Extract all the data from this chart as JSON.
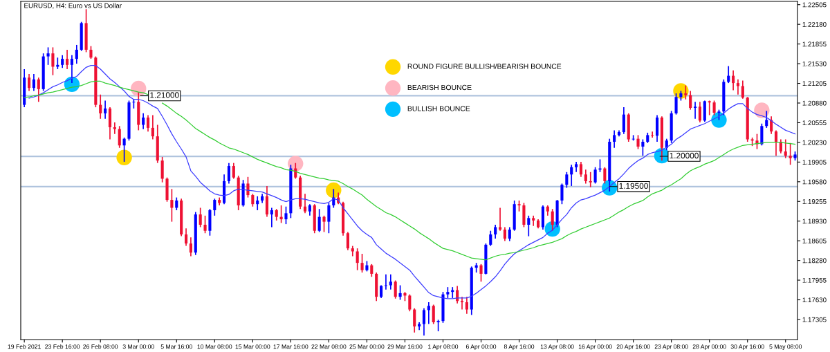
{
  "chart_data": {
    "type": "candlestick",
    "title": "EURUSD, H4: Euro vs US Dollar",
    "categories": [
      "19 Feb 2021",
      null,
      null,
      null,
      null,
      null,
      null,
      null,
      "23 Feb 16:00",
      null,
      null,
      null,
      null,
      null,
      null,
      null,
      "26 Feb 08:00",
      null,
      null,
      null,
      null,
      null,
      null,
      null,
      "3 Mar 00:00",
      null,
      null,
      null,
      null,
      null,
      null,
      null,
      "5 Mar 16:00",
      null,
      null,
      null,
      null,
      null,
      null,
      null,
      "10 Mar 08:00",
      null,
      null,
      null,
      null,
      null,
      null,
      null,
      "15 Mar 00:00",
      null,
      null,
      null,
      null,
      null,
      null,
      null,
      "17 Mar 16:00",
      null,
      null,
      null,
      null,
      null,
      null,
      null,
      "22 Mar 08:00",
      null,
      null,
      null,
      null,
      null,
      null,
      null,
      "25 Mar 00:00",
      null,
      null,
      null,
      null,
      null,
      null,
      null,
      "29 Mar 16:00",
      null,
      null,
      null,
      null,
      null,
      null,
      null,
      "1 Apr 08:00",
      null,
      null,
      null,
      null,
      null,
      null,
      null,
      "6 Apr 00:00",
      null,
      null,
      null,
      null,
      null,
      null,
      null,
      "8 Apr 16:00",
      null,
      null,
      null,
      null,
      null,
      null,
      null,
      "13 Apr 08:00",
      null,
      null,
      null,
      null,
      null,
      null,
      null,
      "16 Apr 00:00",
      null,
      null,
      null,
      null,
      null,
      null,
      null,
      "20 Apr 16:00",
      null,
      null,
      null,
      null,
      null,
      null,
      null,
      "23 Apr 08:00",
      null,
      null,
      null,
      null,
      null,
      null,
      null,
      "28 Apr 00:00",
      null,
      null,
      null,
      null,
      null,
      null,
      null,
      "30 Apr 16:00",
      null,
      null,
      null,
      null,
      null,
      null,
      null,
      "5 May 08:00",
      null,
      null
    ],
    "ylim": [
      1.16974,
      1.22559
    ],
    "yticks": [
      1.22505,
      {
        "value": 1.2218,
        "label": "1.22180"
      },
      1.21855,
      {
        "value": 1.2153,
        "label": "1.21530"
      },
      1.21205,
      {
        "value": 1.2088,
        "label": "1.20880"
      },
      1.20555,
      {
        "value": 1.2023,
        "label": "1.20230"
      },
      1.19905,
      {
        "value": 1.1958,
        "label": "1.19580"
      },
      1.19255,
      {
        "value": 1.1893,
        "label": "1.18930"
      },
      1.18605,
      {
        "value": 1.1828,
        "label": "1.18280"
      },
      1.17955,
      {
        "value": 1.1763,
        "label": "1.17630"
      },
      1.17305
    ],
    "ref_lines": [
      {
        "axis": "y",
        "value": 1.21,
        "label": "1.21000",
        "color": "#b0c4de"
      },
      {
        "axis": "y",
        "value": 1.2,
        "label": "1.20000",
        "color": "#b0c4de"
      },
      {
        "axis": "y",
        "value": 1.195,
        "label": "1.19500",
        "color": "#b0c4de"
      }
    ],
    "legend": "top",
    "series": [
      {
        "ohlc": [
          [
            1.2085,
            1.2144,
            1.2081,
            1.213
          ],
          [
            1.213,
            1.2136,
            1.2108,
            1.2113
          ],
          [
            1.2113,
            1.2136,
            1.2108,
            1.2127
          ],
          [
            1.2127,
            1.213,
            1.209,
            1.2111
          ],
          [
            1.2111,
            1.217,
            1.2108,
            1.2165
          ],
          [
            1.2165,
            1.218,
            1.2151,
            1.217
          ],
          [
            1.217,
            1.218,
            1.2134,
            1.2148
          ],
          [
            1.2148,
            1.2163,
            1.2144,
            1.2151
          ],
          [
            1.2151,
            1.2167,
            1.2146,
            1.2161
          ],
          [
            1.2161,
            1.2176,
            1.2144,
            1.2151
          ],
          [
            1.2151,
            1.2167,
            1.2121,
            1.2161
          ],
          [
            1.2161,
            1.2184,
            1.2153,
            1.2176
          ],
          [
            1.2176,
            1.2222,
            1.2174,
            1.222
          ],
          [
            1.222,
            1.2243,
            1.2172,
            1.2176
          ],
          [
            1.2176,
            1.2182,
            1.2161,
            1.2163
          ],
          [
            1.2163,
            1.2165,
            1.2081,
            1.2085
          ],
          [
            1.2085,
            1.2102,
            1.2062,
            1.2071
          ],
          [
            1.2071,
            1.2092,
            1.2062,
            1.2079
          ],
          [
            1.2079,
            1.2081,
            1.2028,
            1.2048
          ],
          [
            1.2048,
            1.2056,
            1.2037,
            1.2045
          ],
          [
            1.2045,
            1.205,
            1.2014,
            1.2018
          ],
          [
            1.2018,
            1.2031,
            1.1991,
            1.2029
          ],
          [
            1.2029,
            1.2092,
            1.2026,
            1.2089
          ],
          [
            1.2089,
            1.2094,
            1.2079,
            1.209
          ],
          [
            1.209,
            1.2106,
            1.2043,
            1.2052
          ],
          [
            1.2052,
            1.2071,
            1.2045,
            1.2064
          ],
          [
            1.2064,
            1.2068,
            1.2041,
            1.2047
          ],
          [
            1.2047,
            1.2068,
            1.2028,
            1.2033
          ],
          [
            1.2033,
            1.2052,
            1.1989,
            1.1993
          ],
          [
            1.1993,
            1.1999,
            1.1957,
            1.1963
          ],
          [
            1.1963,
            1.1965,
            1.1925,
            1.1928
          ],
          [
            1.1928,
            1.1946,
            1.1892,
            1.1915
          ],
          [
            1.1915,
            1.1932,
            1.1911,
            1.1927
          ],
          [
            1.1927,
            1.193,
            1.1868,
            1.1871
          ],
          [
            1.1871,
            1.1881,
            1.1852,
            1.1856
          ],
          [
            1.1856,
            1.1866,
            1.1835,
            1.1841
          ],
          [
            1.1841,
            1.1908,
            1.1837,
            1.1904
          ],
          [
            1.1904,
            1.1915,
            1.1883,
            1.1887
          ],
          [
            1.1887,
            1.1902,
            1.1873,
            1.1877
          ],
          [
            1.1877,
            1.1913,
            1.1869,
            1.1911
          ],
          [
            1.1911,
            1.193,
            1.1902,
            1.1928
          ],
          [
            1.1928,
            1.1932,
            1.1919,
            1.1923
          ],
          [
            1.1923,
            1.197,
            1.1921,
            1.1959
          ],
          [
            1.1959,
            1.1989,
            1.1955,
            1.1984
          ],
          [
            1.1984,
            1.1989,
            1.1963,
            1.1965
          ],
          [
            1.1965,
            1.1968,
            1.1911,
            1.1919
          ],
          [
            1.1919,
            1.1961,
            1.1917,
            1.1955
          ],
          [
            1.1955,
            1.1966,
            1.1932,
            1.1936
          ],
          [
            1.1936,
            1.1938,
            1.1917,
            1.1921
          ],
          [
            1.1921,
            1.1934,
            1.1911,
            1.1927
          ],
          [
            1.1927,
            1.1938,
            1.1923,
            1.1934
          ],
          [
            1.1934,
            1.1951,
            1.19,
            1.1904
          ],
          [
            1.1904,
            1.1915,
            1.1883,
            1.1911
          ],
          [
            1.1911,
            1.1913,
            1.1894,
            1.19
          ],
          [
            1.19,
            1.1919,
            1.189,
            1.1896
          ],
          [
            1.1896,
            1.1917,
            1.1888,
            1.1906
          ],
          [
            1.1906,
            1.1986,
            1.1898,
            1.198
          ],
          [
            1.198,
            1.1989,
            1.1963,
            1.1965
          ],
          [
            1.1965,
            1.1968,
            1.1913,
            1.1917
          ],
          [
            1.1917,
            1.1938,
            1.1906,
            1.1909
          ],
          [
            1.1909,
            1.1921,
            1.1902,
            1.1919
          ],
          [
            1.1919,
            1.1921,
            1.1873,
            1.1877
          ],
          [
            1.1877,
            1.1913,
            1.1875,
            1.19
          ],
          [
            1.19,
            1.1902,
            1.1875,
            1.1892
          ],
          [
            1.1892,
            1.1923,
            1.1873,
            1.1919
          ],
          [
            1.1919,
            1.1946,
            1.1915,
            1.1932
          ],
          [
            1.1932,
            1.194,
            1.1921,
            1.1923
          ],
          [
            1.1923,
            1.1925,
            1.1869,
            1.1873
          ],
          [
            1.1873,
            1.1875,
            1.1845,
            1.1848
          ],
          [
            1.1848,
            1.1852,
            1.1835,
            1.1843
          ],
          [
            1.1843,
            1.1848,
            1.1812,
            1.1824
          ],
          [
            1.1824,
            1.1839,
            1.1808,
            1.1812
          ],
          [
            1.1812,
            1.1827,
            1.181,
            1.182
          ],
          [
            1.182,
            1.1822,
            1.1801,
            1.1806
          ],
          [
            1.1806,
            1.1808,
            1.1761,
            1.1768
          ],
          [
            1.1768,
            1.1787,
            1.1766,
            1.1786
          ],
          [
            1.1786,
            1.1805,
            1.178,
            1.1787
          ],
          [
            1.1787,
            1.1805,
            1.178,
            1.1793
          ],
          [
            1.1793,
            1.1795,
            1.1765,
            1.1768
          ],
          [
            1.1768,
            1.1787,
            1.1763,
            1.1774
          ],
          [
            1.1774,
            1.1776,
            1.1761,
            1.177
          ],
          [
            1.177,
            1.1772,
            1.1744,
            1.1747
          ],
          [
            1.1747,
            1.1749,
            1.1709,
            1.1719
          ],
          [
            1.1719,
            1.1726,
            1.1713,
            1.1723
          ],
          [
            1.1723,
            1.1749,
            1.1704,
            1.1746
          ],
          [
            1.1746,
            1.1759,
            1.1723,
            1.1753
          ],
          [
            1.1753,
            1.1755,
            1.1723,
            1.1726
          ],
          [
            1.1726,
            1.173,
            1.1711,
            1.1728
          ],
          [
            1.1728,
            1.1776,
            1.1725,
            1.1772
          ],
          [
            1.1772,
            1.1784,
            1.1766,
            1.1776
          ],
          [
            1.1776,
            1.1784,
            1.1766,
            1.1779
          ],
          [
            1.1779,
            1.1786,
            1.1757,
            1.1761
          ],
          [
            1.1761,
            1.1768,
            1.1747,
            1.1759
          ],
          [
            1.1759,
            1.1768,
            1.174,
            1.1747
          ],
          [
            1.1747,
            1.1818,
            1.1738,
            1.1816
          ],
          [
            1.1816,
            1.1824,
            1.1808,
            1.182
          ],
          [
            1.182,
            1.1822,
            1.1793,
            1.1806
          ],
          [
            1.1806,
            1.1856,
            1.1805,
            1.1854
          ],
          [
            1.1854,
            1.1877,
            1.1852,
            1.1871
          ],
          [
            1.1871,
            1.1887,
            1.1864,
            1.1883
          ],
          [
            1.1883,
            1.1915,
            1.1877,
            1.1879
          ],
          [
            1.1879,
            1.1883,
            1.186,
            1.1864
          ],
          [
            1.1864,
            1.1883,
            1.186,
            1.1879
          ],
          [
            1.1879,
            1.1927,
            1.1877,
            1.1921
          ],
          [
            1.1921,
            1.1927,
            1.1909,
            1.1919
          ],
          [
            1.1919,
            1.1923,
            1.1883,
            1.1887
          ],
          [
            1.1887,
            1.1902,
            1.1868,
            1.1898
          ],
          [
            1.1898,
            1.1902,
            1.1885,
            1.1894
          ],
          [
            1.1894,
            1.1896,
            1.1881,
            1.1883
          ],
          [
            1.1883,
            1.1919,
            1.1879,
            1.1917
          ],
          [
            1.1917,
            1.1919,
            1.1902,
            1.1909
          ],
          [
            1.1909,
            1.1913,
            1.1877,
            1.1887
          ],
          [
            1.1887,
            1.1928,
            1.1883,
            1.1927
          ],
          [
            1.1927,
            1.1955,
            1.1921,
            1.1953
          ],
          [
            1.1953,
            1.1974,
            1.1948,
            1.197
          ],
          [
            1.197,
            1.1986,
            1.1951,
            1.1982
          ],
          [
            1.1982,
            1.1991,
            1.1974,
            1.1987
          ],
          [
            1.1987,
            1.1991,
            1.1966,
            1.197
          ],
          [
            1.197,
            1.1978,
            1.1955,
            1.1959
          ],
          [
            1.1959,
            1.1974,
            1.1949,
            1.1957
          ],
          [
            1.1957,
            1.1982,
            1.1955,
            1.1978
          ],
          [
            1.1978,
            1.1995,
            1.1974,
            1.198
          ],
          [
            1.198,
            1.1982,
            1.1955,
            1.1959
          ],
          [
            1.1959,
            1.2029,
            1.1942,
            1.2024
          ],
          [
            1.2024,
            1.2043,
            1.2014,
            1.2035
          ],
          [
            1.2035,
            1.2043,
            1.2033,
            1.204
          ],
          [
            1.204,
            1.2081,
            1.2037,
            1.2069
          ],
          [
            1.2069,
            1.2071,
            1.2024,
            1.2028
          ],
          [
            1.2028,
            1.2035,
            1.2026,
            1.2029
          ],
          [
            1.2029,
            1.2035,
            1.2012,
            1.2016
          ],
          [
            1.2016,
            1.2028,
            1.2001,
            1.2024
          ],
          [
            1.2024,
            1.2039,
            1.2022,
            1.2035
          ],
          [
            1.2035,
            1.2041,
            1.2031,
            1.2034
          ],
          [
            1.2034,
            1.2068,
            1.2024,
            1.2064
          ],
          [
            1.2064,
            1.2066,
            1.1993,
            1.2014
          ],
          [
            1.2014,
            1.2029,
            1.201,
            1.2026
          ],
          [
            1.2026,
            1.2075,
            1.2022,
            1.2071
          ],
          [
            1.2071,
            1.2104,
            1.2069,
            1.2098
          ],
          [
            1.2098,
            1.2108,
            1.2092,
            1.2104
          ],
          [
            1.2104,
            1.2117,
            1.2094,
            1.2101
          ],
          [
            1.2101,
            1.2108,
            1.2077,
            1.208
          ],
          [
            1.208,
            1.209,
            1.2062,
            1.2082
          ],
          [
            1.2082,
            1.209,
            1.2056,
            1.2059
          ],
          [
            1.2059,
            1.2092,
            1.2057,
            1.2091
          ],
          [
            1.2091,
            1.2092,
            1.2068,
            1.2089
          ],
          [
            1.2089,
            1.2092,
            1.2068,
            1.2072
          ],
          [
            1.2072,
            1.2077,
            1.206,
            1.2074
          ],
          [
            1.2074,
            1.2127,
            1.2068,
            1.2123
          ],
          [
            1.2123,
            1.2149,
            1.2121,
            1.2133
          ],
          [
            1.2133,
            1.2142,
            1.2109,
            1.2121
          ],
          [
            1.2121,
            1.2127,
            1.2102,
            1.2116
          ],
          [
            1.2116,
            1.2125,
            1.2095,
            1.2097
          ],
          [
            1.2097,
            1.2098,
            1.2024,
            1.2028
          ],
          [
            1.2028,
            1.2031,
            1.2017,
            1.2026
          ],
          [
            1.2026,
            1.2037,
            1.2012,
            1.202
          ],
          [
            1.202,
            1.2054,
            1.2018,
            1.205
          ],
          [
            1.205,
            1.2075,
            1.2047,
            1.206
          ],
          [
            1.206,
            1.2066,
            1.2037,
            1.2041
          ],
          [
            1.2041,
            1.2043,
            1.2001,
            1.2024
          ],
          [
            1.2024,
            1.2028,
            1.2005,
            1.2008
          ],
          [
            1.2008,
            1.2028,
            1.1997,
            1.2001
          ],
          [
            1.2001,
            1.2022,
            1.1986,
            1.1997
          ],
          [
            1.1997,
            1.2008,
            1.1993,
            1.2003
          ]
        ],
        "colors": [
          "#0000ff",
          "#ee1133",
          "#0000ff",
          "#ee1133",
          "#0000ff",
          "#0000ff",
          "#ee1133",
          "#0000ff",
          "#0000ff",
          "#ee1133",
          "#0000ff",
          "#0000ff",
          "#0000ff",
          "#ee1133",
          "#ee1133",
          "#ee1133",
          "#ee1133",
          "#0000ff",
          "#ee1133",
          "#ee1133",
          "#ee1133",
          "#0000ff",
          "#0000ff",
          "#0000ff",
          "#ee1133",
          "#0000ff",
          "#ee1133",
          "#ee1133",
          "#ee1133",
          "#ee1133",
          "#ee1133",
          "#ee1133",
          "#0000ff",
          "#ee1133",
          "#ee1133",
          "#ee1133",
          "#0000ff",
          "#ee1133",
          "#ee1133",
          "#0000ff",
          "#0000ff",
          "#ee1133",
          "#0000ff",
          "#0000ff",
          "#ee1133",
          "#ee1133",
          "#0000ff",
          "#ee1133",
          "#ee1133",
          "#0000ff",
          "#0000ff",
          "#ee1133",
          "#0000ff",
          "#ee1133",
          "#ee1133",
          "#0000ff",
          "#0000ff",
          "#ee1133",
          "#ee1133",
          "#ee1133",
          "#0000ff",
          "#ee1133",
          "#0000ff",
          "#ee1133",
          "#0000ff",
          "#0000ff",
          "#ee1133",
          "#ee1133",
          "#ee1133",
          "#ee1133",
          "#ee1133",
          "#ee1133",
          "#0000ff",
          "#ee1133",
          "#ee1133",
          "#0000ff",
          "#0000ff",
          "#0000ff",
          "#ee1133",
          "#0000ff",
          "#ee1133",
          "#ee1133",
          "#ee1133",
          "#0000ff",
          "#0000ff",
          "#0000ff",
          "#ee1133",
          "#0000ff",
          "#0000ff",
          "#0000ff",
          "#0000ff",
          "#ee1133",
          "#ee1133",
          "#ee1133",
          "#0000ff",
          "#0000ff",
          "#ee1133",
          "#0000ff",
          "#0000ff",
          "#0000ff",
          "#ee1133",
          "#ee1133",
          "#0000ff",
          "#0000ff",
          "#ee1133",
          "#ee1133",
          "#0000ff",
          "#ee1133",
          "#ee1133",
          "#0000ff",
          "#ee1133",
          "#ee1133",
          "#0000ff",
          "#0000ff",
          "#0000ff",
          "#0000ff",
          "#0000ff",
          "#ee1133",
          "#ee1133",
          "#ee1133",
          "#0000ff",
          "#0000ff",
          "#ee1133",
          "#0000ff",
          "#0000ff",
          "#0000ff",
          "#0000ff",
          "#ee1133",
          "#0000ff",
          "#ee1133",
          "#0000ff",
          "#0000ff",
          "#ee1133",
          "#0000ff",
          "#ee1133",
          "#0000ff",
          "#0000ff",
          "#0000ff",
          "#0000ff",
          "#ee1133",
          "#ee1133",
          "#0000ff",
          "#ee1133",
          "#0000ff",
          "#ee1133",
          "#ee1133",
          "#0000ff",
          "#0000ff",
          "#0000ff",
          "#ee1133",
          "#ee1133",
          "#ee1133",
          "#ee1133",
          "#ee1133",
          "#ee1133",
          "#0000ff",
          "#0000ff",
          "#ee1133",
          "#ee1133",
          "#ee1133",
          "#ee1133",
          "#ee1133",
          "#0000ff"
        ]
      },
      {
        "type": "line",
        "color": "#3c3cff",
        "values": [
          null,
          1.2096,
          1.2098,
          1.2101,
          1.2105,
          1.211,
          1.2115,
          1.2118,
          1.2122,
          1.2125,
          1.2129,
          1.2132,
          1.214,
          1.2147,
          1.215,
          1.215,
          1.2144,
          1.2136,
          1.2128,
          1.2122,
          1.2115,
          1.2108,
          1.2099,
          1.2094,
          1.2094,
          1.2092,
          1.2088,
          1.2083,
          1.2079,
          1.2066,
          1.2052,
          1.2037,
          1.2024,
          1.2012,
          1.1999,
          1.1976,
          1.1967,
          1.1957,
          1.195,
          1.1943,
          1.1938,
          1.1936,
          1.1935,
          1.1937,
          1.1943,
          1.1946,
          1.1945,
          1.1944,
          1.1943,
          1.1942,
          1.1941,
          1.1938,
          1.1935,
          1.1932,
          1.1928,
          1.1925,
          1.1928,
          1.193,
          1.193,
          1.1929,
          1.1927,
          1.1925,
          1.1923,
          1.1922,
          1.1924,
          1.193,
          1.1928,
          1.1915,
          1.1905,
          1.1895,
          1.1885,
          1.1877,
          1.1871,
          1.1866,
          1.1854,
          1.1847,
          1.184,
          1.1835,
          1.183,
          1.1824,
          1.1818,
          1.1812,
          1.1802,
          1.1793,
          1.1784,
          1.1775,
          1.177,
          1.1768,
          1.1766,
          1.1765,
          1.1765,
          1.1766,
          1.1766,
          1.1766,
          1.1769,
          1.1774,
          1.178,
          1.1786,
          1.1793,
          1.1801,
          1.1811,
          1.1822,
          1.1831,
          1.1839,
          1.1844,
          1.1849,
          1.1854,
          1.1858,
          1.1862,
          1.1866,
          1.1873,
          1.1878,
          1.1887,
          1.1896,
          1.1904,
          1.1915,
          1.1923,
          1.1928,
          1.193,
          1.1933,
          1.1936,
          1.194,
          1.1944,
          1.195,
          1.1957,
          1.1963,
          1.1971,
          1.198,
          1.1987,
          1.1993,
          1.1997,
          1.2003,
          1.2006,
          1.2008,
          1.201,
          1.2015,
          1.202,
          1.2028,
          1.2033,
          1.2039,
          1.2045,
          1.2048,
          1.2051,
          1.2054,
          1.2058,
          1.2062,
          1.2066,
          1.2071,
          1.2078,
          1.2083,
          1.2087,
          1.2087,
          1.2079,
          1.2073,
          1.2069,
          1.2067,
          1.2064,
          1.2059,
          1.2053,
          1.2048,
          1.2043,
          1.204,
          1.2037
        ]
      },
      {
        "type": "line",
        "color": "#32cd32",
        "values": [
          1.2097,
          1.2098,
          1.21,
          1.2101,
          1.2103,
          1.2105,
          1.2106,
          1.2108,
          1.211,
          1.2112,
          1.2114,
          1.2115,
          1.2117,
          1.212,
          1.2123,
          1.2124,
          1.2124,
          1.2121,
          1.2119,
          1.2117,
          1.2114,
          1.2112,
          1.211,
          1.2108,
          1.2106,
          1.2105,
          1.2102,
          null,
          null,
          1.2088,
          1.2083,
          1.2077,
          1.2071,
          1.2066,
          1.206,
          1.2053,
          1.2046,
          1.2041,
          1.2036,
          1.2031,
          1.2027,
          1.2022,
          1.2018,
          1.2014,
          1.2012,
          1.2009,
          1.2006,
          1.2003,
          1.1999,
          1.1995,
          1.1992,
          1.1989,
          1.1986,
          1.1983,
          1.1981,
          1.1978,
          1.1977,
          1.1975,
          1.1972,
          1.197,
          1.1968,
          1.1966,
          1.1964,
          1.1963,
          1.1961,
          1.196,
          1.1959,
          1.1955,
          1.195,
          1.1946,
          1.1941,
          1.1936,
          1.1929,
          1.1923,
          1.1917,
          1.1912,
          1.1907,
          1.1904,
          1.19,
          1.1895,
          1.189,
          1.1885,
          1.188,
          1.1874,
          1.1869,
          1.1864,
          1.1858,
          1.1853,
          1.1848,
          1.1846,
          1.1844,
          1.1841,
          1.1838,
          1.1835,
          1.1832,
          1.1831,
          1.183,
          1.1829,
          1.1832,
          1.1835,
          1.1837,
          1.1838,
          1.184,
          1.1841,
          1.1843,
          1.1845,
          1.1847,
          1.1849,
          1.1852,
          1.1854,
          1.1856,
          1.1858,
          1.1861,
          1.1864,
          1.1869,
          1.1873,
          1.1876,
          1.188,
          1.1883,
          1.1886,
          1.1889,
          1.1892,
          1.1895,
          1.1898,
          1.1903,
          1.1908,
          1.1912,
          1.1917,
          1.1921,
          1.1924,
          1.1927,
          1.1933,
          1.1938,
          1.1941,
          1.1944,
          1.1949,
          1.1953,
          1.1958,
          1.1963,
          1.197,
          1.1976,
          1.198,
          1.1983,
          1.1987,
          1.199,
          1.1993,
          1.1998,
          1.2003,
          1.2008,
          1.2012,
          1.2015,
          1.2018,
          1.2019,
          1.202,
          1.2021,
          1.2022,
          1.2023,
          1.2023,
          1.2023,
          1.2023,
          1.2022,
          1.2021,
          1.202
        ]
      },
      {
        "type": "scatter",
        "name": "ROUND FIGURE BULLISH/BEARISH BOUNCE",
        "color": "#ffd700",
        "marker": "circle",
        "values": [
          null,
          null,
          null,
          null,
          null,
          null,
          null,
          null,
          null,
          null,
          null,
          null,
          null,
          null,
          null,
          null,
          null,
          null,
          null,
          null,
          null,
          1.1998,
          null,
          null,
          null,
          null,
          null,
          null,
          null,
          null,
          null,
          null,
          null,
          null,
          null,
          null,
          null,
          null,
          null,
          null,
          null,
          null,
          null,
          null,
          null,
          null,
          null,
          null,
          null,
          null,
          null,
          null,
          null,
          null,
          null,
          null,
          null,
          null,
          null,
          null,
          null,
          null,
          null,
          null,
          null,
          1.1944,
          null,
          null,
          null,
          null,
          null,
          null,
          null,
          null,
          null,
          null,
          null,
          null,
          null,
          null,
          null,
          null,
          null,
          null,
          null,
          null,
          null,
          null,
          null,
          null,
          null,
          null,
          null,
          null,
          null,
          null,
          null,
          null,
          null,
          null,
          null,
          null,
          null,
          null,
          null,
          null,
          null,
          null,
          null,
          null,
          null,
          null,
          null,
          null,
          null,
          null,
          null,
          null,
          null,
          null,
          null,
          null,
          null,
          null,
          null,
          null,
          null,
          null,
          null,
          null,
          null,
          null,
          null,
          null,
          null,
          null,
          null,
          null,
          1.2108,
          null,
          null,
          null,
          null,
          null,
          null,
          null,
          null,
          null,
          null,
          null,
          null,
          null,
          null,
          null,
          null,
          null,
          null,
          null,
          null,
          null,
          null,
          null,
          null
        ]
      },
      {
        "type": "scatter",
        "name": "BEARISH BOUNCE",
        "color": "#ffb6c1",
        "marker": "circle",
        "values": [
          null,
          null,
          null,
          null,
          null,
          null,
          null,
          null,
          null,
          null,
          null,
          null,
          null,
          null,
          null,
          null,
          null,
          null,
          null,
          null,
          null,
          null,
          null,
          null,
          1.2112,
          null,
          null,
          null,
          null,
          null,
          null,
          null,
          null,
          null,
          null,
          null,
          null,
          null,
          null,
          null,
          null,
          null,
          null,
          null,
          null,
          null,
          null,
          null,
          null,
          null,
          null,
          null,
          null,
          null,
          null,
          null,
          null,
          1.1988,
          null,
          null,
          null,
          null,
          null,
          null,
          null,
          null,
          null,
          null,
          null,
          null,
          null,
          null,
          null,
          null,
          null,
          null,
          null,
          null,
          null,
          null,
          null,
          null,
          null,
          null,
          null,
          null,
          null,
          null,
          null,
          null,
          null,
          null,
          null,
          null,
          null,
          null,
          null,
          null,
          null,
          null,
          null,
          null,
          null,
          null,
          null,
          null,
          null,
          null,
          null,
          null,
          null,
          null,
          null,
          null,
          null,
          null,
          null,
          null,
          null,
          null,
          null,
          null,
          null,
          null,
          null,
          null,
          null,
          null,
          null,
          null,
          null,
          null,
          null,
          null,
          null,
          null,
          null,
          null,
          null,
          null,
          null,
          null,
          null,
          null,
          null,
          null,
          null,
          null,
          null,
          null,
          null,
          null,
          null,
          null,
          null,
          1.2076,
          null,
          null,
          null,
          null,
          null,
          null,
          null
        ]
      },
      {
        "type": "scatter",
        "name": "BULLISH BOUNCE",
        "color": "#00bfff",
        "marker": "circle",
        "values": [
          null,
          null,
          null,
          null,
          null,
          null,
          null,
          null,
          null,
          null,
          1.2119,
          null,
          null,
          null,
          null,
          null,
          null,
          null,
          null,
          null,
          null,
          null,
          null,
          null,
          null,
          null,
          null,
          null,
          null,
          null,
          null,
          null,
          null,
          null,
          null,
          null,
          null,
          null,
          null,
          null,
          null,
          null,
          null,
          null,
          null,
          null,
          null,
          null,
          null,
          null,
          null,
          null,
          null,
          null,
          null,
          null,
          null,
          null,
          null,
          null,
          null,
          null,
          null,
          null,
          null,
          null,
          null,
          null,
          null,
          null,
          null,
          null,
          null,
          null,
          null,
          null,
          null,
          null,
          null,
          null,
          null,
          null,
          null,
          null,
          null,
          null,
          null,
          null,
          null,
          null,
          null,
          null,
          null,
          null,
          null,
          null,
          null,
          null,
          null,
          null,
          null,
          null,
          null,
          null,
          null,
          null,
          null,
          null,
          null,
          null,
          null,
          1.188,
          null,
          null,
          null,
          null,
          null,
          null,
          null,
          null,
          null,
          null,
          null,
          1.1948,
          null,
          null,
          null,
          null,
          null,
          null,
          null,
          null,
          null,
          null,
          1.2001,
          null,
          null,
          null,
          null,
          null,
          null,
          null,
          null,
          null,
          null,
          null,
          1.206,
          null,
          null,
          null,
          null,
          null,
          null,
          null,
          null,
          null,
          null,
          null,
          null,
          null,
          null,
          null,
          null
        ]
      }
    ]
  }
}
